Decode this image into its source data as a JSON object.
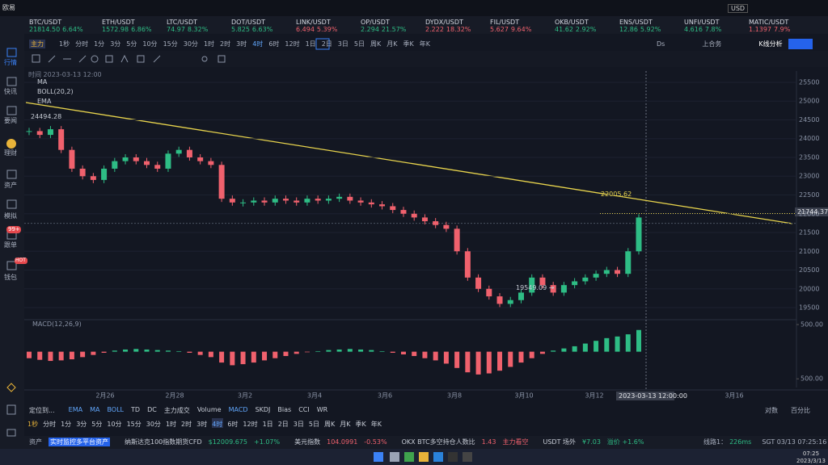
{
  "app": {
    "window_title": "欧易",
    "currency": "USD"
  },
  "tickers": [
    {
      "symbol": "BTC/USDT",
      "price": "21814.50",
      "change": "6.64%",
      "color": "#2ebd85"
    },
    {
      "symbol": "ETH/USDT",
      "price": "1572.98",
      "change": "6.86%",
      "color": "#2ebd85"
    },
    {
      "symbol": "LTC/USDT",
      "price": "74.97",
      "change": "8.32%",
      "color": "#2ebd85"
    },
    {
      "symbol": "DOT/USDT",
      "price": "5.825",
      "change": "6.63%",
      "color": "#2ebd85"
    },
    {
      "symbol": "LINK/USDT",
      "price": "6.494",
      "change": "5.39%",
      "color": "#f0616d"
    },
    {
      "symbol": "OP/USDT",
      "price": "2.294",
      "change": "21.57%",
      "color": "#2ebd85"
    },
    {
      "symbol": "DYDX/USDT",
      "price": "2.222",
      "change": "18.32%",
      "color": "#f0616d"
    },
    {
      "symbol": "FIL/USDT",
      "price": "5.627",
      "change": "9.64%",
      "color": "#f0616d"
    },
    {
      "symbol": "OKB/USDT",
      "price": "41.62",
      "change": "2.92%",
      "color": "#2ebd85"
    },
    {
      "symbol": "ENS/USDT",
      "price": "12.86",
      "change": "5.92%",
      "color": "#2ebd85"
    },
    {
      "symbol": "UNFI/USDT",
      "price": "4.616",
      "change": "7.8%",
      "color": "#2ebd85"
    },
    {
      "symbol": "MATIC/USDT",
      "price": "1.1397",
      "change": "7.9%",
      "color": "#f0616d"
    }
  ],
  "toolbar": {
    "mode": "主力",
    "intervals": [
      "1秒",
      "分时",
      "1分",
      "3分",
      "5分",
      "10分",
      "15分",
      "30分",
      "1时",
      "2时",
      "3时",
      "4时",
      "6时",
      "12时",
      "1日",
      "2日",
      "3日",
      "5日",
      "周K",
      "月K",
      "季K",
      "年K"
    ],
    "right": [
      "Ds",
      "上合务",
      "K线分析"
    ]
  },
  "sidebar": {
    "items": [
      "行情",
      "快讯",
      "要闻",
      "理财",
      "资产",
      "模拟",
      "跟单",
      "钱包"
    ],
    "badges": [
      "99+",
      "HOT"
    ]
  },
  "chart_data": {
    "type": "candlestick",
    "time_label": "时间 2023-03-13 12:00",
    "indicators": [
      "MA",
      "BOLL(20,2)",
      "EMA"
    ],
    "high_label": "24494.28",
    "low_label": "19549.09 →",
    "line_label": "22005.62",
    "price_tag": "21744.37",
    "crosshair_time": "2023-03-13 12:00:00",
    "xlabels": [
      "2月26",
      "2月28",
      "3月2",
      "3月4",
      "3月6",
      "3月8",
      "3月10",
      "3月12",
      "3月16"
    ],
    "ylim": [
      19200,
      25800
    ],
    "yticks": [
      19500,
      20000,
      20500,
      21000,
      21500,
      22000,
      22500,
      23000,
      23500,
      24000,
      24500,
      25000,
      25500
    ],
    "up_color": "#2ebd85",
    "down_color": "#f0616d",
    "closes": [
      24200,
      24100,
      24250,
      23700,
      23200,
      23000,
      22900,
      23200,
      23400,
      23500,
      23400,
      23300,
      23200,
      23600,
      23700,
      23500,
      23400,
      23300,
      22400,
      22300,
      22300,
      22350,
      22300,
      22400,
      22350,
      22300,
      22400,
      22350,
      22400,
      22450,
      22350,
      22300,
      22250,
      22200,
      22100,
      22000,
      21900,
      21800,
      21700,
      21600,
      21000,
      20300,
      20000,
      19800,
      19600,
      19700,
      19900,
      20300,
      20100,
      19900,
      20100,
      20200,
      20300,
      20400,
      20500,
      20400,
      21000,
      21900
    ],
    "macd": {
      "title": "MACD(12,26,9)",
      "ylim": [
        -660,
        575
      ],
      "yticks": [
        {
          "value": 500,
          "label": "500.00"
        },
        {
          "value": -500,
          "label": "500.00"
        }
      ],
      "values": [
        -120,
        -150,
        -170,
        -160,
        -140,
        -100,
        -60,
        -20,
        20,
        40,
        50,
        40,
        30,
        20,
        10,
        -20,
        -60,
        -100,
        -200,
        -250,
        -230,
        -200,
        -160,
        -120,
        -80,
        -40,
        -10,
        10,
        30,
        40,
        50,
        40,
        30,
        10,
        -20,
        -50,
        -80,
        -120,
        -160,
        -220,
        -300,
        -380,
        -420,
        -400,
        -350,
        -280,
        -200,
        -120,
        -40,
        20,
        60,
        100,
        150,
        200,
        250,
        280,
        320,
        400
      ]
    }
  },
  "indicator_bar": {
    "locate": "定位到...",
    "items": [
      "EMA",
      "MA",
      "BOLL",
      "TD",
      "DC",
      "主力成交",
      "Volume",
      "MACD",
      "SKDJ",
      "Bias",
      "CCI",
      "WR"
    ],
    "right": [
      "对数",
      "百分比"
    ]
  },
  "interval_bar": [
    "1秒",
    "分时",
    "1分",
    "3分",
    "5分",
    "10分",
    "15分",
    "30分",
    "1时",
    "2时",
    "3时",
    "4时",
    "6时",
    "12时",
    "1日",
    "2日",
    "3日",
    "5日",
    "周K",
    "月K",
    "季K",
    "年K"
  ],
  "status": {
    "assets": "资产",
    "monitor": "实时监控多平台资产",
    "nas_name": "纳斯达克100指数期货CFD",
    "nas_price": "$12009.675",
    "nas_change": "+1.07%",
    "dxy_name": "美元指数",
    "dxy_price": "104.0991",
    "dxy_change": "-0.53%",
    "ls_name": "OKX BTC多空持仓人数比",
    "ls_value": "1.43",
    "ls_note": "主力看空",
    "otc_name": "USDT 场外",
    "otc_price": "¥7.03",
    "otc_premium": "溢价 +1.6%",
    "line": "线路1：",
    "latency": "226ms",
    "clock": "SGT 03/13 07:25:16"
  },
  "taskbar": {
    "time": "07:25",
    "date": "2023/3/13"
  }
}
